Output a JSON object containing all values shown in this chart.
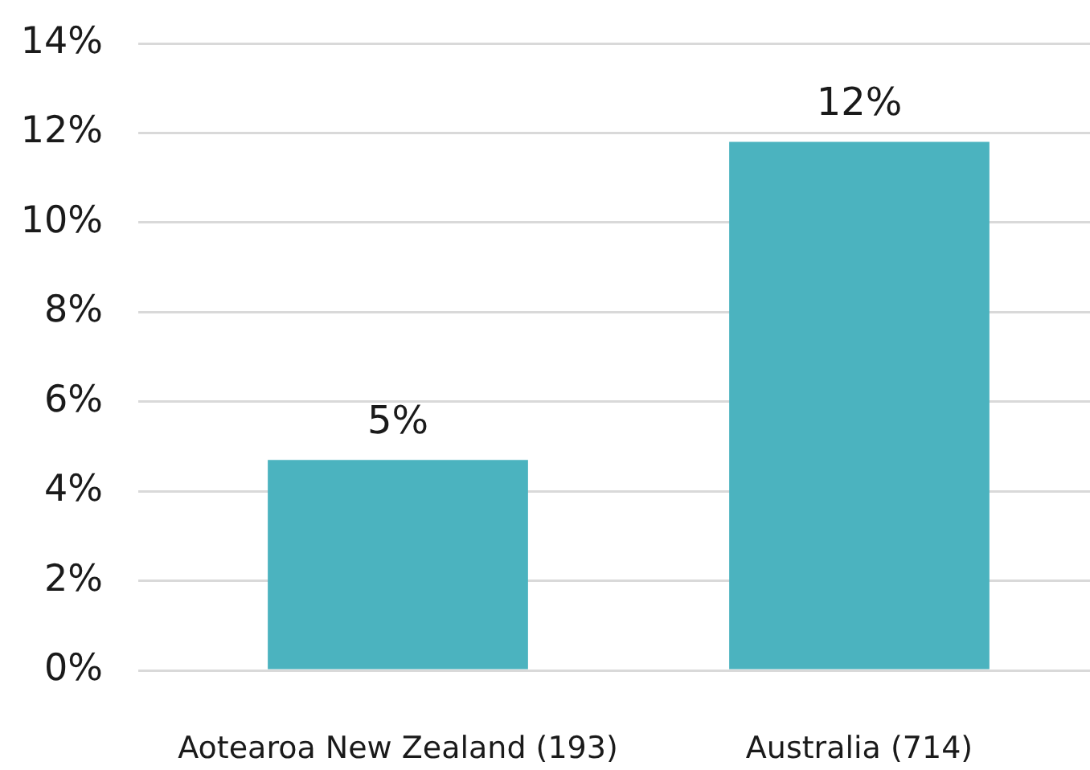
{
  "chart_data": {
    "type": "bar",
    "categories": [
      "Aotearoa New Zealand (193)",
      "Australia (714)"
    ],
    "values": [
      4.7,
      11.8
    ],
    "color": "#4bb3bf",
    "value_labels": [
      "5%",
      "12%"
    ],
    "ylim": [
      0,
      14
    ],
    "yticks": [
      {
        "value": 0,
        "label": "0%"
      },
      {
        "value": 2,
        "label": "2%"
      },
      {
        "value": 4,
        "label": "4%"
      },
      {
        "value": 6,
        "label": "6%"
      },
      {
        "value": 8,
        "label": "8%"
      },
      {
        "value": 10,
        "label": "10%"
      },
      {
        "value": 12,
        "label": "12%"
      },
      {
        "value": 14,
        "label": "14%"
      }
    ],
    "grid": "y"
  }
}
